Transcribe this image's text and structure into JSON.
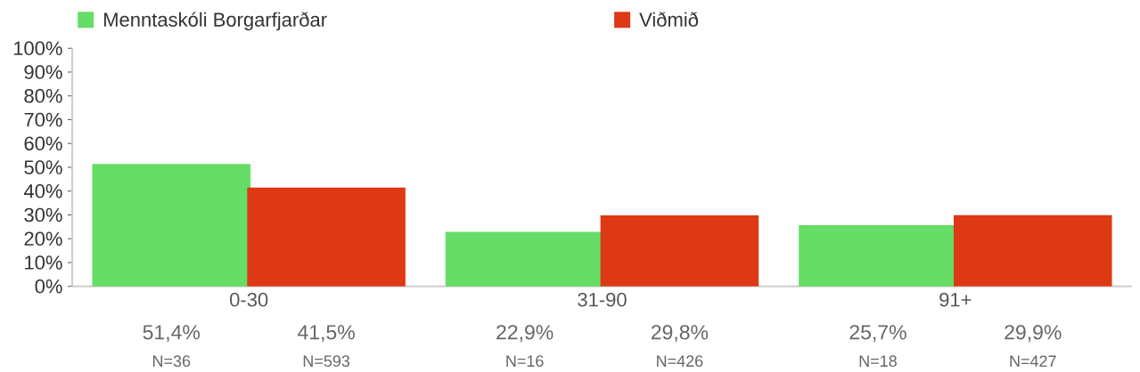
{
  "chart_data": {
    "type": "bar",
    "categories": [
      "0-30",
      "31-90",
      "91+"
    ],
    "series": [
      {
        "name": "Menntaskóli Borgarfjarðar",
        "color": "#66dd66",
        "values": [
          51.4,
          22.9,
          25.7
        ],
        "value_labels": [
          "51,4%",
          "22,9%",
          "25,7%"
        ]
      },
      {
        "name": "Viðmið",
        "color": "#dd3914",
        "values": [
          41.5,
          29.8,
          29.9
        ],
        "value_labels": [
          "41,5%",
          "29,8%",
          "29,9%"
        ]
      }
    ],
    "ylim": [
      0,
      100
    ],
    "yticks": [
      {
        "value": 0,
        "label": "0%"
      },
      {
        "value": 10,
        "label": "10%"
      },
      {
        "value": 20,
        "label": "20%"
      },
      {
        "value": 30,
        "label": "30%"
      },
      {
        "value": 40,
        "label": "40%"
      },
      {
        "value": 50,
        "label": "50%"
      },
      {
        "value": 60,
        "label": "60%"
      },
      {
        "value": 70,
        "label": "70%"
      },
      {
        "value": 80,
        "label": "80%"
      },
      {
        "value": 90,
        "label": "90%"
      },
      {
        "value": 100,
        "label": "100%"
      }
    ],
    "legend": "top",
    "annotations": [
      "N=36",
      "N=593",
      "N=16",
      "N=426",
      "N=18",
      "N=427"
    ]
  }
}
